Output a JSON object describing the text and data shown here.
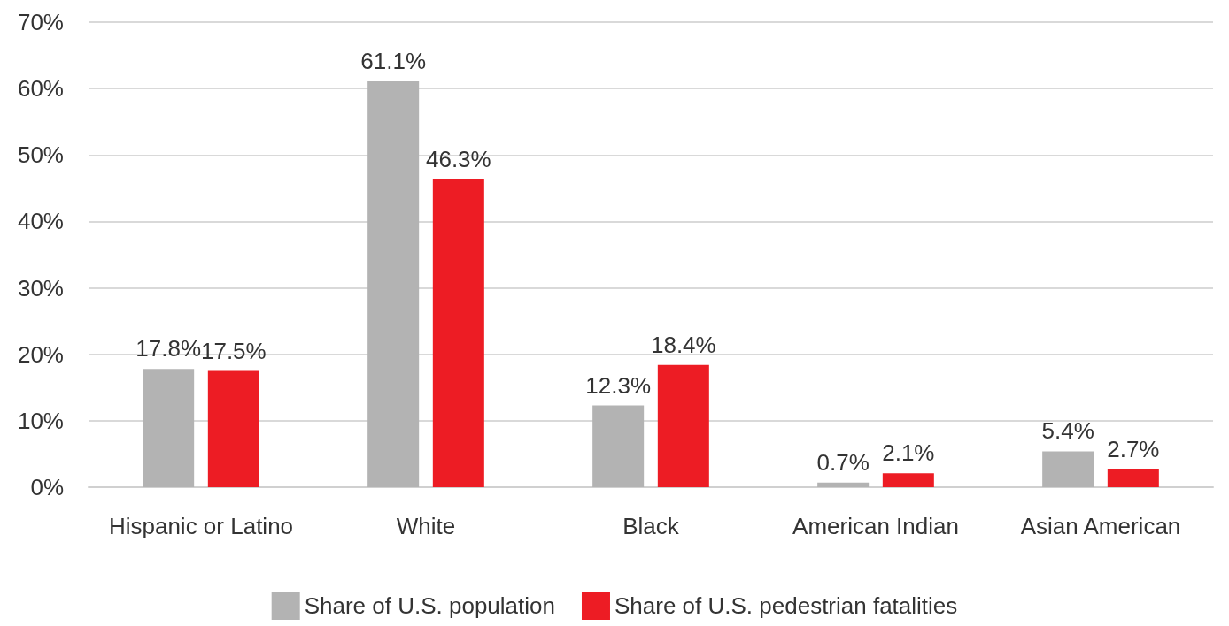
{
  "chart_data": {
    "type": "bar",
    "categories": [
      "Hispanic or Latino",
      "White",
      "Black",
      "American Indian",
      "Asian American"
    ],
    "series": [
      {
        "name": "Share of U.S. population",
        "color": "#b3b3b3",
        "values": [
          17.8,
          61.1,
          12.3,
          0.7,
          5.4
        ],
        "value_labels": [
          "17.8%",
          "61.1%",
          "12.3%",
          "0.7%",
          "5.4%"
        ]
      },
      {
        "name": "Share of U.S. pedestrian fatalities",
        "color": "#ed1c24",
        "values": [
          17.5,
          46.3,
          18.4,
          2.1,
          2.7
        ],
        "value_labels": [
          "17.5%",
          "46.3%",
          "18.4%",
          "2.1%",
          "2.7%"
        ]
      }
    ],
    "ylim": [
      0,
      70
    ],
    "yticks": [
      {
        "value": 0,
        "label": "0%"
      },
      {
        "value": 10,
        "label": "10%"
      },
      {
        "value": 20,
        "label": "20%"
      },
      {
        "value": 30,
        "label": "30%"
      },
      {
        "value": 40,
        "label": "40%"
      },
      {
        "value": 50,
        "label": "50%"
      },
      {
        "value": 60,
        "label": "60%"
      },
      {
        "value": 70,
        "label": "70%"
      }
    ],
    "grid": "y",
    "legend": "bottom"
  }
}
